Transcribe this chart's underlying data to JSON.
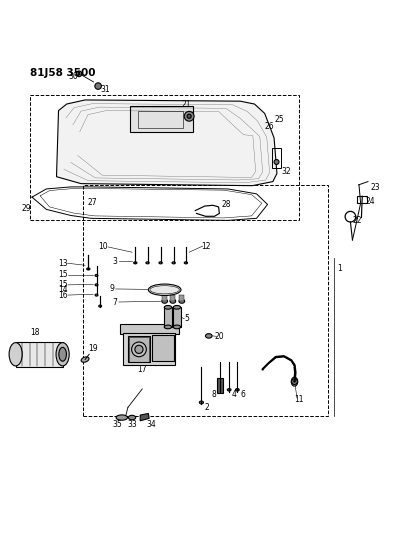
{
  "title": "81J58 3500",
  "bg_color": "#ffffff",
  "line_color": "#000000",
  "figsize": [
    4.11,
    5.33
  ],
  "dpi": 100
}
